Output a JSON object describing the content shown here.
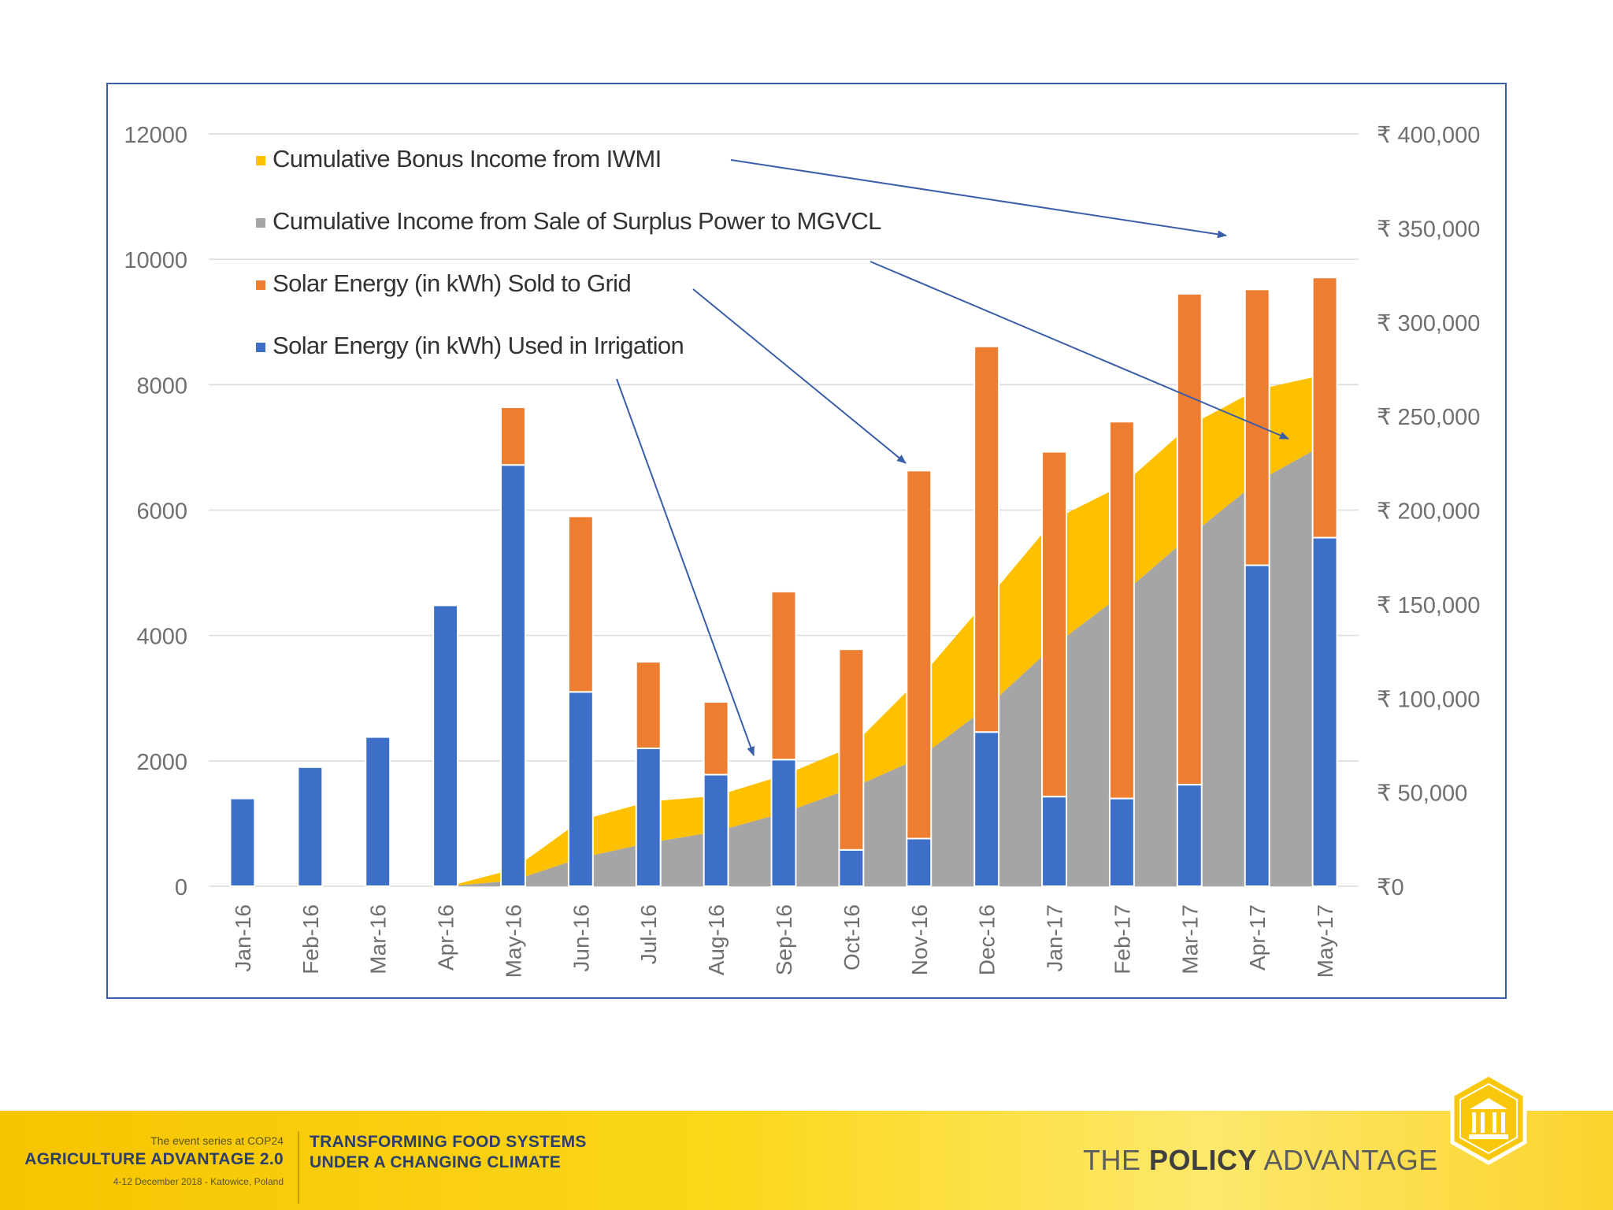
{
  "chart_data": {
    "type": "bar+area",
    "categories": [
      "Jan-16",
      "Feb-16",
      "Mar-16",
      "Apr-16",
      "May-16",
      "Jun-16",
      "Jul-16",
      "Aug-16",
      "Sep-16",
      "Oct-16",
      "Nov-16",
      "Dec-16",
      "Jan-17",
      "Feb-17",
      "Mar-17",
      "Apr-17",
      "May-17"
    ],
    "stacked_bars": [
      {
        "name": "Solar Energy  (in kWh) Used in Irrigation",
        "color": "#3e6fc8",
        "values": [
          1400,
          1900,
          2380,
          4480,
          6720,
          3100,
          2200,
          1780,
          2020,
          580,
          760,
          2460,
          1430,
          1400,
          1620,
          5120,
          5560
        ]
      },
      {
        "name": "Solar Energy  (in kWh) Sold to Grid",
        "color": "#ed7d31",
        "values": [
          0,
          0,
          0,
          0,
          920,
          2800,
          1380,
          1160,
          2680,
          3200,
          5870,
          6150,
          5500,
          6010,
          7830,
          4400,
          4150
        ]
      }
    ],
    "areas": [
      {
        "name": "Cumulative Income from Sale of Surplus Power to MGVCL",
        "color": "#a5a5a5",
        "axis": "right",
        "values": [
          0,
          0,
          0,
          0,
          3000,
          15000,
          23000,
          29000,
          39000,
          52000,
          68000,
          95000,
          128000,
          155000,
          186000,
          215000,
          235000
        ]
      },
      {
        "name": "Cumulative Bonus Income from IWMI",
        "color": "#ffc000",
        "axis": "right",
        "stacked_on": "Cumulative Income from Sale of Surplus Power to MGVCL",
        "values": [
          0,
          0,
          0,
          0,
          6000,
          20000,
          22000,
          19000,
          20000,
          22000,
          42000,
          57000,
          67000,
          58000,
          59000,
          49000,
          37000
        ]
      }
    ],
    "legend": [
      "Cumulative Bonus Income from IWMI",
      "Cumulative Income from Sale of Surplus Power to MGVCL",
      "Solar Energy  (in kWh) Sold to Grid",
      "Solar Energy  (in kWh) Used in Irrigation"
    ],
    "legend_position": "top-left",
    "left_axis": {
      "ylim": [
        0,
        12000
      ],
      "ticks": [
        "0",
        "2000",
        "4000",
        "6000",
        "8000",
        "10000",
        "12000"
      ]
    },
    "right_axis": {
      "ylim": [
        0,
        400000
      ],
      "ticks": [
        "₹0",
        "₹ 50,000",
        "₹ 100,000",
        "₹ 150,000",
        "₹ 200,000",
        "₹ 250,000",
        "₹ 300,000",
        "₹ 350,000",
        "₹ 400,000"
      ]
    },
    "grid": true
  },
  "footer": {
    "series_line": "The event series at COP24",
    "event_name": "AGRICULTURE ADVANTAGE 2.0",
    "dates": "4-12 December 2018 - Katowice, Poland",
    "theme_line1": "TRANSFORMING FOOD SYSTEMS",
    "theme_line2": "UNDER A CHANGING CLIMATE",
    "policy_prefix": "THE ",
    "policy_bold": "POLICY",
    "policy_suffix": " ADVANTAGE",
    "logo_icon": "building-columns-icon",
    "colors": {
      "band": "#f7c400",
      "navy": "#2c3e6a"
    }
  }
}
